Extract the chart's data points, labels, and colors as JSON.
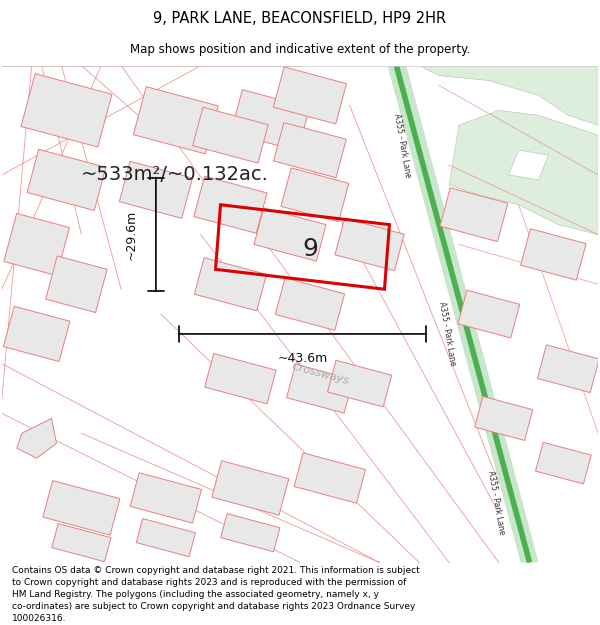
{
  "title": "9, PARK LANE, BEACONSFIELD, HP9 2HR",
  "subtitle": "Map shows position and indicative extent of the property.",
  "footer": "Contains OS data © Crown copyright and database right 2021. This information is subject\nto Crown copyright and database rights 2023 and is reproduced with the permission of\nHM Land Registry. The polygons (including the associated geometry, namely x, y\nco-ordinates) are subject to Crown copyright and database rights 2023 Ordnance Survey\n100026316.",
  "area_label": "~533m²/~0.132ac.",
  "plot_number": "9",
  "width_label": "~43.6m",
  "height_label": "~29.6m",
  "road_label": "A355 - Park Lane",
  "crossways_label": "Crossways",
  "building_fill": "#e8e8e8",
  "building_stroke": "#e88080",
  "street_color": "#e88080",
  "plot_stroke": "#dd0000",
  "plot_fill": "none",
  "road_fill": "#c8e6c9",
  "road_line": "#4caf50",
  "park_fill": "#ddeedd",
  "park_stroke": "#bbccbb"
}
